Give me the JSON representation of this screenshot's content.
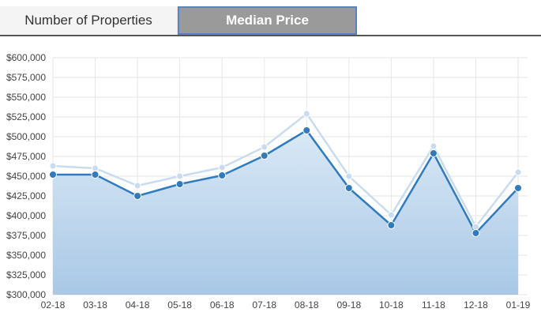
{
  "tabs": [
    {
      "label": "Number of Properties",
      "active": false
    },
    {
      "label": "Median Price",
      "active": true
    }
  ],
  "colors": {
    "primary_line": "#2f7bbd",
    "secondary_line": "#c9dcef",
    "area_top": "#d9e8f6",
    "area_bottom": "#a9c8e6",
    "grid": "#e6e6e6",
    "active_tab_border": "#5b82c7"
  },
  "chart_data": {
    "type": "area",
    "categories": [
      "02-18",
      "03-18",
      "04-18",
      "05-18",
      "06-18",
      "07-18",
      "08-18",
      "09-18",
      "10-18",
      "11-18",
      "12-18",
      "01-19"
    ],
    "series": [
      {
        "values": [
          452000,
          452000,
          425000,
          440000,
          451000,
          476000,
          508000,
          435000,
          388000,
          479000,
          378000,
          435000
        ]
      },
      {
        "values": [
          463000,
          460000,
          438000,
          450000,
          461000,
          487000,
          529000,
          450000,
          401000,
          488000,
          386000,
          455000
        ]
      }
    ],
    "ylim": [
      300000,
      600000
    ],
    "yticks": [
      "$600,000",
      "$575,000",
      "$550,000",
      "$525,000",
      "$500,000",
      "$475,000",
      "$450,000",
      "$425,000",
      "$400,000",
      "$375,000",
      "$350,000",
      "$325,000",
      "$300,000"
    ],
    "ytick_values": [
      600000,
      575000,
      550000,
      525000,
      500000,
      475000,
      450000,
      425000,
      400000,
      375000,
      350000,
      325000,
      300000
    ],
    "grid": true
  }
}
